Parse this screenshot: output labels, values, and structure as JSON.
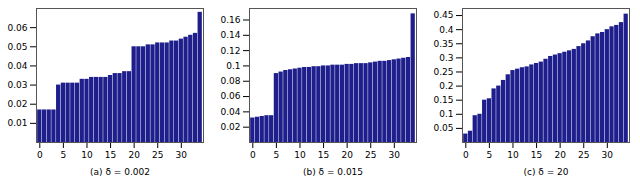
{
  "chart_data": [
    {
      "type": "bar",
      "xlabel": "(a) δ = 0.002",
      "x": [
        0,
        1,
        2,
        3,
        4,
        5,
        6,
        7,
        8,
        9,
        10,
        11,
        12,
        13,
        14,
        15,
        16,
        17,
        18,
        19,
        20,
        21,
        22,
        23,
        24,
        25,
        26,
        27,
        28,
        29,
        30,
        31,
        32,
        33,
        34
      ],
      "values": [
        0.017,
        0.017,
        0.017,
        0.017,
        0.03,
        0.031,
        0.031,
        0.031,
        0.031,
        0.033,
        0.033,
        0.034,
        0.034,
        0.034,
        0.034,
        0.035,
        0.036,
        0.036,
        0.037,
        0.037,
        0.05,
        0.05,
        0.05,
        0.051,
        0.051,
        0.052,
        0.052,
        0.052,
        0.053,
        0.053,
        0.054,
        0.055,
        0.056,
        0.057,
        0.068
      ],
      "color": "#1e1e8c",
      "xlim": [
        -0.7,
        34.7
      ],
      "xticks": [
        0,
        5,
        10,
        15,
        20,
        25,
        30
      ],
      "ylim": [
        0,
        0.07
      ],
      "yticks": [
        0.01,
        0.02,
        0.03,
        0.04,
        0.05,
        0.06
      ]
    },
    {
      "type": "bar",
      "xlabel": "(b) δ = 0.015",
      "x": [
        0,
        1,
        2,
        3,
        4,
        5,
        6,
        7,
        8,
        9,
        10,
        11,
        12,
        13,
        14,
        15,
        16,
        17,
        18,
        19,
        20,
        21,
        22,
        23,
        24,
        25,
        26,
        27,
        28,
        29,
        30,
        31,
        32,
        33,
        34
      ],
      "values": [
        0.032,
        0.033,
        0.034,
        0.035,
        0.035,
        0.09,
        0.092,
        0.094,
        0.095,
        0.096,
        0.097,
        0.098,
        0.098,
        0.099,
        0.099,
        0.1,
        0.1,
        0.101,
        0.101,
        0.101,
        0.102,
        0.102,
        0.103,
        0.103,
        0.103,
        0.104,
        0.105,
        0.106,
        0.106,
        0.107,
        0.108,
        0.109,
        0.11,
        0.111,
        0.168
      ],
      "color": "#1e1e8c",
      "xlim": [
        -0.7,
        34.7
      ],
      "xticks": [
        0,
        5,
        10,
        15,
        20,
        25,
        30
      ],
      "ylim": [
        0,
        0.175
      ],
      "yticks": [
        0.02,
        0.04,
        0.06,
        0.08,
        0.1,
        0.12,
        0.14,
        0.16
      ]
    },
    {
      "type": "bar",
      "xlabel": "(c) δ = 20",
      "x": [
        0,
        1,
        2,
        3,
        4,
        5,
        6,
        7,
        8,
        9,
        10,
        11,
        12,
        13,
        14,
        15,
        16,
        17,
        18,
        19,
        20,
        21,
        22,
        23,
        24,
        25,
        26,
        27,
        28,
        29,
        30,
        31,
        32,
        33,
        34
      ],
      "values": [
        0.03,
        0.04,
        0.095,
        0.1,
        0.15,
        0.155,
        0.19,
        0.2,
        0.22,
        0.24,
        0.255,
        0.26,
        0.265,
        0.268,
        0.275,
        0.28,
        0.285,
        0.295,
        0.305,
        0.31,
        0.315,
        0.32,
        0.325,
        0.33,
        0.34,
        0.35,
        0.36,
        0.375,
        0.385,
        0.39,
        0.4,
        0.41,
        0.415,
        0.425,
        0.455
      ],
      "color": "#1e1e8c",
      "xlim": [
        -0.7,
        34.7
      ],
      "xticks": [
        0,
        5,
        10,
        15,
        20,
        25,
        30
      ],
      "ylim": [
        0,
        0.475
      ],
      "yticks": [
        0.05,
        0.1,
        0.15,
        0.2,
        0.25,
        0.3,
        0.35,
        0.4,
        0.45
      ]
    }
  ]
}
